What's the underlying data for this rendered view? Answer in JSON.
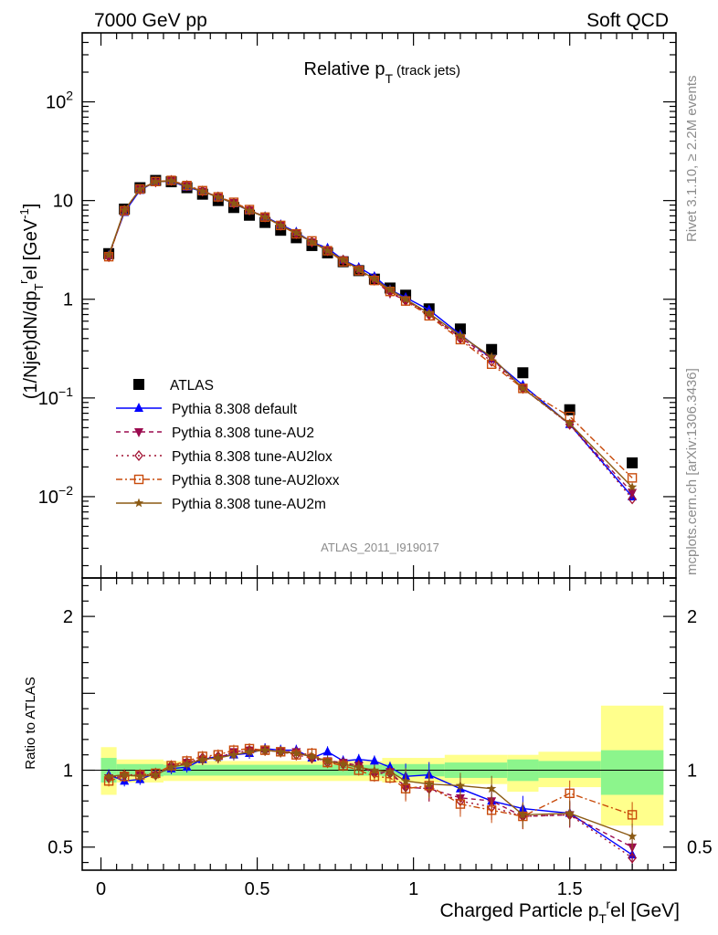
{
  "header": {
    "left": "7000 GeV pp",
    "right": "Soft QCD"
  },
  "side_notes": {
    "rivet": "Rivet 3.1.10, ≥ 2.2M events",
    "mcplots": "mcplots.cern.ch [arXiv:1306.3436]"
  },
  "chart_data": [
    {
      "type": "line",
      "panel": "main",
      "title": "Relative p",
      "title_sub": "T",
      "title_suffix": "(track jets)",
      "ylabel": "(1/Njet)dN/dp_T^rel [GeV^-1]",
      "ylabel_parts": {
        "a": "(1/Njet)dN/dp",
        "sub": "T",
        "sup": "r",
        "b": "el [GeV",
        "sup2": "-1",
        "c": "]"
      },
      "yscale": "log",
      "ylim": [
        0.0015,
        500
      ],
      "xlim": [
        -0.06,
        1.84
      ],
      "watermark": "ATLAS_2011_I919017",
      "ytick_labels": [
        {
          "value": 100,
          "base": "10",
          "exp": "2"
        },
        {
          "value": 10,
          "base": "10",
          "exp": ""
        },
        {
          "value": 1,
          "base": "1",
          "exp": ""
        },
        {
          "value": 0.1,
          "base": "10",
          "exp": "−1"
        },
        {
          "value": 0.01,
          "base": "10",
          "exp": "−2"
        }
      ],
      "legend_placement": "lower-left",
      "x": [
        0.025,
        0.075,
        0.125,
        0.175,
        0.225,
        0.275,
        0.325,
        0.375,
        0.425,
        0.475,
        0.525,
        0.575,
        0.625,
        0.675,
        0.725,
        0.775,
        0.825,
        0.875,
        0.925,
        0.975,
        1.05,
        1.15,
        1.25,
        1.35,
        1.5,
        1.7
      ],
      "series": [
        {
          "name": "ATLAS",
          "color": "#000000",
          "marker": "square",
          "dash": "none",
          "values": [
            2.9,
            8.2,
            13.5,
            16.0,
            15.5,
            13.5,
            11.6,
            10.0,
            8.5,
            7.1,
            6.0,
            5.0,
            4.2,
            3.5,
            2.95,
            2.4,
            1.95,
            1.6,
            1.3,
            1.1,
            0.8,
            0.5,
            0.31,
            0.18,
            0.076,
            0.022
          ]
        },
        {
          "name": "Pythia 8.308 default",
          "color": "#0000ff",
          "marker": "triangle-up",
          "dash": "none",
          "values": [
            2.8,
            7.6,
            12.7,
            15.6,
            15.7,
            13.7,
            12.4,
            10.9,
            9.3,
            7.9,
            6.9,
            5.7,
            4.8,
            3.8,
            3.3,
            2.5,
            2.1,
            1.7,
            1.25,
            1.04,
            0.78,
            0.44,
            0.25,
            0.135,
            0.054,
            0.01
          ]
        },
        {
          "name": "Pythia 8.308 tune-AU2",
          "color": "#9b0a4f",
          "marker": "triangle-down",
          "dash": "5,4",
          "values": [
            2.7,
            7.9,
            13.0,
            15.4,
            15.9,
            14.1,
            12.4,
            10.8,
            9.5,
            8.0,
            6.8,
            5.6,
            4.7,
            3.8,
            3.1,
            2.5,
            2.0,
            1.55,
            1.15,
            0.98,
            0.7,
            0.41,
            0.25,
            0.125,
            0.054,
            0.011
          ]
        },
        {
          "name": "Pythia 8.308 tune-AU2lox",
          "color": "#a01030",
          "marker": "diamond-open",
          "dash": "2,4",
          "values": [
            2.7,
            8.0,
            13.0,
            15.5,
            16.0,
            14.2,
            12.5,
            10.9,
            9.4,
            8.0,
            6.8,
            5.6,
            4.6,
            3.8,
            3.1,
            2.5,
            2.0,
            1.6,
            1.2,
            0.97,
            0.7,
            0.4,
            0.235,
            0.125,
            0.054,
            0.0095
          ]
        },
        {
          "name": "Pythia 8.308 tune-AU2loxx",
          "color": "#c84a0a",
          "marker": "square-open",
          "dash": "7,3,2,3",
          "values": [
            2.7,
            7.9,
            13.1,
            15.6,
            16.0,
            14.2,
            12.6,
            10.9,
            9.6,
            8.1,
            6.8,
            5.6,
            4.6,
            3.9,
            3.1,
            2.4,
            1.95,
            1.55,
            1.2,
            0.96,
            0.68,
            0.39,
            0.22,
            0.125,
            0.065,
            0.0155
          ]
        },
        {
          "name": "Pythia 8.308 tune-AU2m",
          "color": "#8b5a14",
          "marker": "star",
          "dash": "none",
          "values": [
            2.8,
            8.0,
            13.0,
            15.5,
            15.8,
            14.0,
            12.4,
            10.8,
            9.4,
            7.9,
            6.8,
            5.6,
            4.7,
            3.8,
            3.1,
            2.5,
            2.0,
            1.6,
            1.25,
            1.0,
            0.72,
            0.43,
            0.26,
            0.125,
            0.055,
            0.0125
          ]
        }
      ]
    },
    {
      "type": "line",
      "panel": "ratio",
      "ylabel": "Ratio to ATLAS",
      "xlabel": "Charged Particle p",
      "xlabel_sub": "T",
      "xlabel_sup": "r",
      "xlabel_suffix": "el [GeV]",
      "ylim": [
        0.35,
        2.25
      ],
      "xlim": [
        -0.06,
        1.84
      ],
      "ytick_labels": [
        {
          "value": 2,
          "label": "2"
        },
        {
          "value": 1,
          "label": "1"
        },
        {
          "value": 0.5,
          "label": "0.5"
        }
      ],
      "xtick_labels": [
        {
          "value": 0,
          "label": "0"
        },
        {
          "value": 0.5,
          "label": "0.5"
        },
        {
          "value": 1,
          "label": "1"
        },
        {
          "value": 1.5,
          "label": "1.5"
        }
      ],
      "bands": [
        {
          "x0": 0.0,
          "x1": 0.05,
          "yellow": [
            0.84,
            1.15
          ],
          "green": [
            0.92,
            1.08
          ]
        },
        {
          "x0": 0.05,
          "x1": 0.2,
          "yellow": [
            0.92,
            1.07
          ],
          "green": [
            0.96,
            1.04
          ]
        },
        {
          "x0": 0.2,
          "x1": 0.9,
          "yellow": [
            0.93,
            1.06
          ],
          "green": [
            0.965,
            1.035
          ]
        },
        {
          "x0": 0.9,
          "x1": 1.1,
          "yellow": [
            0.92,
            1.08
          ],
          "green": [
            0.96,
            1.04
          ]
        },
        {
          "x0": 1.1,
          "x1": 1.3,
          "yellow": [
            0.91,
            1.1
          ],
          "green": [
            0.95,
            1.05
          ]
        },
        {
          "x0": 1.3,
          "x1": 1.4,
          "yellow": [
            0.86,
            1.1
          ],
          "green": [
            0.93,
            1.07
          ]
        },
        {
          "x0": 1.4,
          "x1": 1.6,
          "yellow": [
            0.89,
            1.12
          ],
          "green": [
            0.95,
            1.06
          ]
        },
        {
          "x0": 1.6,
          "x1": 1.8,
          "yellow": [
            0.64,
            1.42
          ],
          "green": [
            0.84,
            1.13
          ]
        }
      ],
      "series": [
        {
          "name": "Pythia 8.308 default",
          "values": [
            0.97,
            0.93,
            0.94,
            0.98,
            1.01,
            1.02,
            1.07,
            1.09,
            1.1,
            1.11,
            1.14,
            1.13,
            1.13,
            1.08,
            1.12,
            1.06,
            1.07,
            1.06,
            1.02,
            0.96,
            0.97,
            0.88,
            0.8,
            0.75,
            0.72,
            0.45
          ]
        },
        {
          "name": "Pythia 8.308 tune-AU2",
          "values": [
            0.95,
            0.96,
            0.97,
            0.97,
            1.02,
            1.05,
            1.07,
            1.08,
            1.12,
            1.13,
            1.13,
            1.12,
            1.12,
            1.08,
            1.06,
            1.05,
            1.03,
            0.98,
            0.99,
            0.89,
            0.88,
            0.82,
            0.8,
            0.7,
            0.71,
            0.5
          ]
        },
        {
          "name": "Pythia 8.308 tune-AU2lox",
          "values": [
            0.95,
            0.97,
            0.97,
            0.97,
            1.03,
            1.05,
            1.08,
            1.09,
            1.11,
            1.13,
            1.13,
            1.12,
            1.1,
            1.08,
            1.05,
            1.04,
            1.03,
            0.98,
            0.98,
            0.89,
            0.88,
            0.8,
            0.76,
            0.7,
            0.71,
            0.43
          ]
        },
        {
          "name": "Pythia 8.308 tune-AU2loxx",
          "values": [
            0.93,
            0.96,
            0.97,
            0.98,
            1.03,
            1.06,
            1.09,
            1.1,
            1.13,
            1.14,
            1.13,
            1.12,
            1.1,
            1.11,
            1.05,
            1.03,
            1.0,
            0.96,
            0.95,
            0.88,
            0.9,
            0.78,
            0.74,
            0.7,
            0.85,
            0.71
          ]
        },
        {
          "name": "Pythia 8.308 tune-AU2m",
          "values": [
            0.96,
            0.97,
            0.96,
            0.97,
            1.02,
            1.04,
            1.07,
            1.08,
            1.1,
            1.12,
            1.13,
            1.12,
            1.11,
            1.09,
            1.06,
            1.04,
            1.02,
            1.0,
            0.99,
            0.93,
            0.91,
            0.9,
            0.88,
            0.71,
            0.72,
            0.57
          ]
        }
      ]
    }
  ]
}
